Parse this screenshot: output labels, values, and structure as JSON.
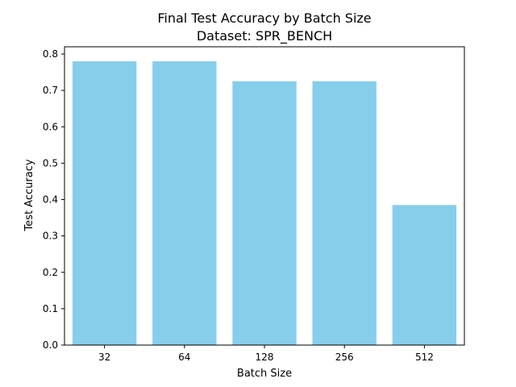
{
  "chart_data": {
    "type": "bar",
    "title": "Final Test Accuracy by Batch Size",
    "subtitle": "Dataset: SPR_BENCH",
    "xlabel": "Batch Size",
    "ylabel": "Test Accuracy",
    "categories": [
      "32",
      "64",
      "128",
      "256",
      "512"
    ],
    "values": [
      0.78,
      0.78,
      0.725,
      0.725,
      0.385
    ],
    "ylim": [
      0,
      0.82
    ],
    "yticks": [
      "0.0",
      "0.1",
      "0.2",
      "0.3",
      "0.4",
      "0.5",
      "0.6",
      "0.7",
      "0.8"
    ],
    "grid": false,
    "legend": "none",
    "bar_color": "#87ceeb"
  }
}
